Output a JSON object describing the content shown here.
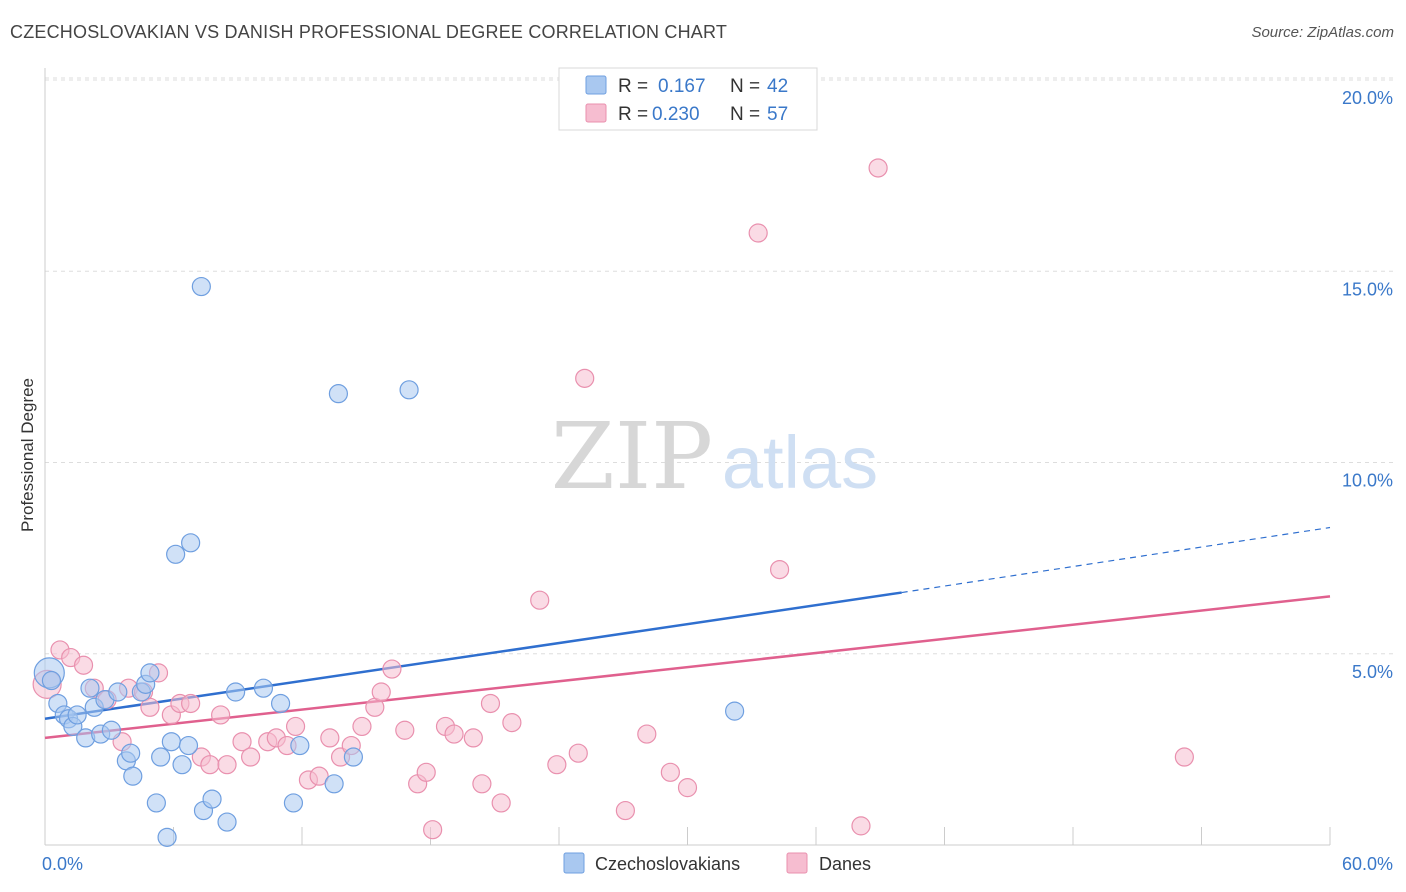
{
  "header": {
    "title": "CZECHOSLOVAKIAN VS DANISH PROFESSIONAL DEGREE CORRELATION CHART",
    "source": "Source: ZipAtlas.com"
  },
  "watermark": {
    "zip": "ZIP",
    "atlas": "atlas"
  },
  "colors": {
    "blue_fill": "#a9c8f0",
    "blue_stroke": "#6f9fe0",
    "blue_line": "#2f6fcf",
    "pink_fill": "#f6bdd0",
    "pink_stroke": "#e990ae",
    "pink_line": "#e0608e",
    "tick_text": "#3a78c9",
    "grid": "#dddddd"
  },
  "legend": {
    "rows": [
      {
        "r_label": "R =",
        "r_value": "0.167",
        "n_label": "N =",
        "n_value": "42"
      },
      {
        "r_label": "R =",
        "r_value": "0.230",
        "n_label": "N =",
        "n_value": "57"
      }
    ]
  },
  "chart_data": {
    "type": "scatter",
    "xlabel": "",
    "ylabel": "Professional Degree",
    "xlim": [
      0,
      60
    ],
    "ylim": [
      0,
      20
    ],
    "x_tick_labels": [
      "0.0%",
      "60.0%"
    ],
    "y_ticks": [
      5,
      10,
      15,
      20
    ],
    "y_tick_labels": [
      "5.0%",
      "10.0%",
      "15.0%",
      "20.0%"
    ],
    "grid": true,
    "legend_position": "top-center",
    "series": [
      {
        "name": "Czechoslovakians",
        "color": "#a9c8f0",
        "r": 0.167,
        "n": 42,
        "trend": {
          "x0": 0,
          "y0": 3.3,
          "x1": 40,
          "y1": 6.6,
          "dashed_to_x": 60,
          "dashed_to_y": 8.3
        },
        "points": [
          [
            0.2,
            4.5
          ],
          [
            0.3,
            4.3
          ],
          [
            0.6,
            3.7
          ],
          [
            0.9,
            3.4
          ],
          [
            1.1,
            3.3
          ],
          [
            1.3,
            3.1
          ],
          [
            1.5,
            3.4
          ],
          [
            1.9,
            2.8
          ],
          [
            2.1,
            4.1
          ],
          [
            2.3,
            3.6
          ],
          [
            2.6,
            2.9
          ],
          [
            2.8,
            3.8
          ],
          [
            3.1,
            3.0
          ],
          [
            3.4,
            4.0
          ],
          [
            3.8,
            2.2
          ],
          [
            4.0,
            2.4
          ],
          [
            4.1,
            1.8
          ],
          [
            4.5,
            4.0
          ],
          [
            4.7,
            4.2
          ],
          [
            4.9,
            4.5
          ],
          [
            5.2,
            1.1
          ],
          [
            5.4,
            2.3
          ],
          [
            5.7,
            0.2
          ],
          [
            5.9,
            2.7
          ],
          [
            6.1,
            7.6
          ],
          [
            6.4,
            2.1
          ],
          [
            6.7,
            2.6
          ],
          [
            6.8,
            7.9
          ],
          [
            7.3,
            14.6
          ],
          [
            7.4,
            0.9
          ],
          [
            7.8,
            1.2
          ],
          [
            8.5,
            0.6
          ],
          [
            8.9,
            4.0
          ],
          [
            10.2,
            4.1
          ],
          [
            11.0,
            3.7
          ],
          [
            11.6,
            1.1
          ],
          [
            11.9,
            2.6
          ],
          [
            13.5,
            1.6
          ],
          [
            13.7,
            11.8
          ],
          [
            14.4,
            2.3
          ],
          [
            17.0,
            11.9
          ],
          [
            32.2,
            3.5
          ]
        ]
      },
      {
        "name": "Danes",
        "color": "#f6bdd0",
        "r": 0.23,
        "n": 57,
        "trend": {
          "x0": 0,
          "y0": 2.8,
          "x1": 60,
          "y1": 6.5
        },
        "points": [
          [
            0.1,
            4.2
          ],
          [
            0.7,
            5.1
          ],
          [
            1.2,
            4.9
          ],
          [
            1.8,
            4.7
          ],
          [
            2.3,
            4.1
          ],
          [
            2.9,
            3.8
          ],
          [
            3.6,
            2.7
          ],
          [
            3.9,
            4.1
          ],
          [
            4.6,
            4.0
          ],
          [
            4.9,
            3.6
          ],
          [
            5.3,
            4.5
          ],
          [
            5.9,
            3.4
          ],
          [
            6.3,
            3.7
          ],
          [
            6.8,
            3.7
          ],
          [
            7.3,
            2.3
          ],
          [
            7.7,
            2.1
          ],
          [
            8.2,
            3.4
          ],
          [
            8.5,
            2.1
          ],
          [
            9.2,
            2.7
          ],
          [
            9.6,
            2.3
          ],
          [
            10.4,
            2.7
          ],
          [
            10.8,
            2.8
          ],
          [
            11.3,
            2.6
          ],
          [
            11.7,
            3.1
          ],
          [
            12.3,
            1.7
          ],
          [
            12.8,
            1.8
          ],
          [
            13.3,
            2.8
          ],
          [
            13.8,
            2.3
          ],
          [
            14.3,
            2.6
          ],
          [
            14.8,
            3.1
          ],
          [
            15.4,
            3.6
          ],
          [
            15.7,
            4.0
          ],
          [
            16.2,
            4.6
          ],
          [
            16.8,
            3.0
          ],
          [
            17.4,
            1.6
          ],
          [
            17.8,
            1.9
          ],
          [
            18.1,
            0.4
          ],
          [
            18.7,
            3.1
          ],
          [
            19.1,
            2.9
          ],
          [
            20.0,
            2.8
          ],
          [
            20.4,
            1.6
          ],
          [
            20.8,
            3.7
          ],
          [
            21.3,
            1.1
          ],
          [
            21.8,
            3.2
          ],
          [
            23.1,
            6.4
          ],
          [
            23.9,
            2.1
          ],
          [
            24.9,
            2.4
          ],
          [
            25.2,
            12.2
          ],
          [
            27.1,
            0.9
          ],
          [
            28.1,
            2.9
          ],
          [
            29.2,
            1.9
          ],
          [
            30.0,
            1.5
          ],
          [
            33.3,
            16.0
          ],
          [
            34.3,
            7.2
          ],
          [
            38.1,
            0.5
          ],
          [
            38.9,
            17.7
          ],
          [
            53.2,
            2.3
          ]
        ]
      }
    ]
  }
}
